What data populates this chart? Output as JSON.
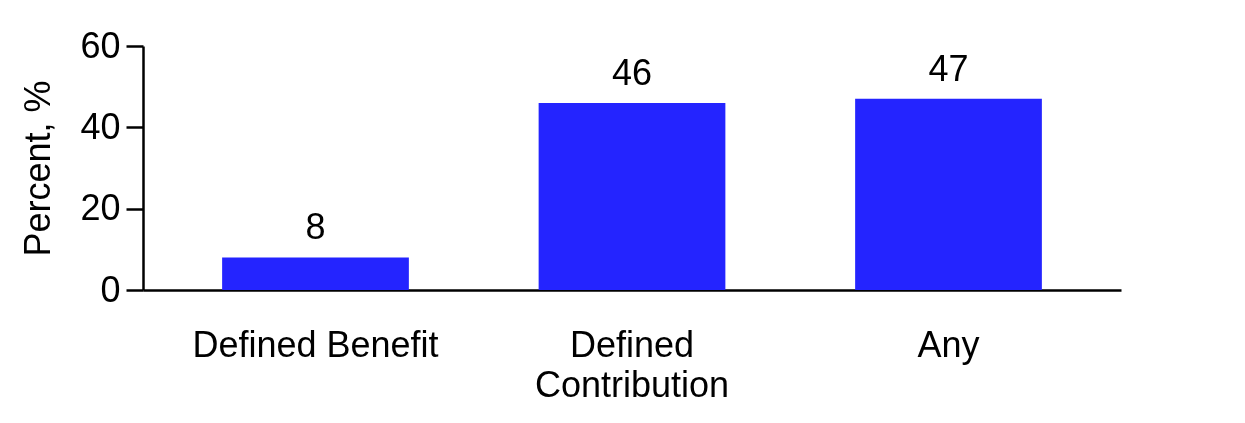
{
  "chart_data": {
    "type": "bar",
    "ylabel": "Percent, %",
    "categories": [
      "Defined Benefit",
      "Defined Contribution",
      "Any"
    ],
    "values": [
      8,
      46,
      47
    ],
    "color": "#2424ff",
    "ylim": [
      0,
      60
    ],
    "yticks": [
      0,
      20,
      40,
      60
    ],
    "data_labels": true,
    "grid": false
  }
}
